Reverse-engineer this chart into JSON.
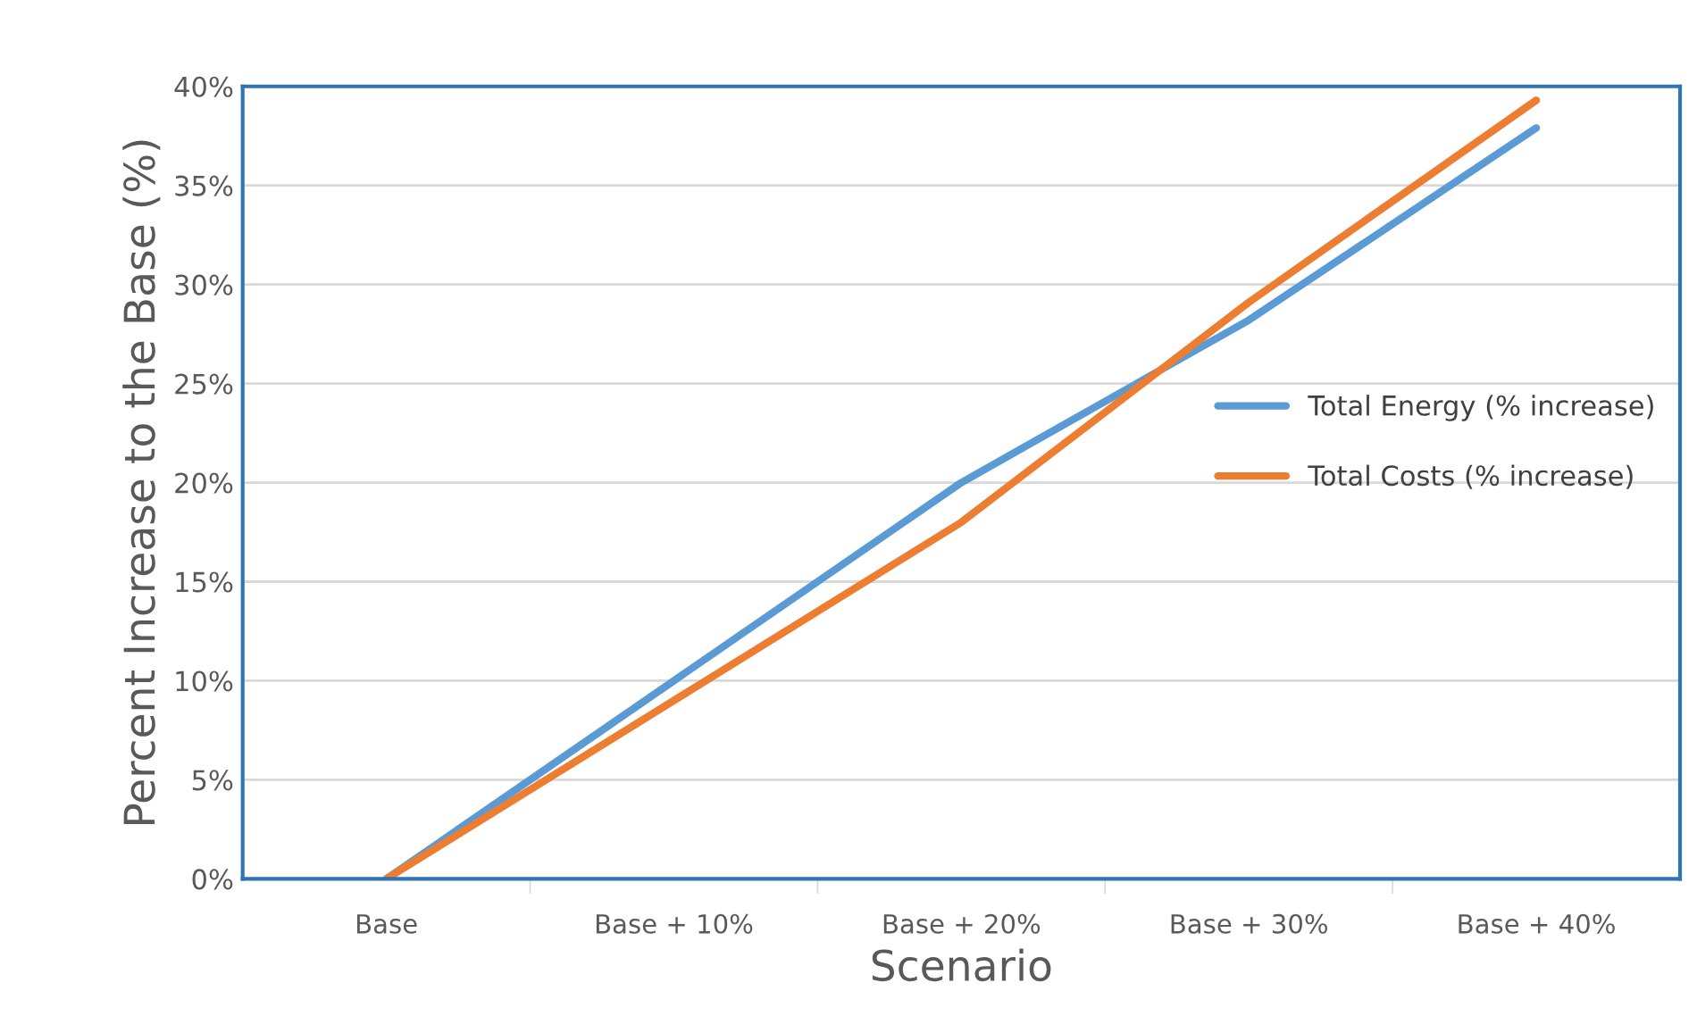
{
  "chart_data": {
    "type": "line",
    "xlabel": "Scenario",
    "ylabel": "Percent Increase to the Base (%)",
    "categories": [
      "Base",
      "Base + 10%",
      "Base + 20%",
      "Base + 30%",
      "Base + 40%"
    ],
    "series": [
      {
        "name": "Total Energy (% increase)",
        "color": "#5b9bd5",
        "values": [
          0,
          10,
          20,
          28.2,
          37.9
        ]
      },
      {
        "name": "Total Costs (% increase)",
        "color": "#ed7d31",
        "values": [
          0,
          9,
          18,
          29.1,
          39.3
        ]
      }
    ],
    "ylim": [
      0,
      40
    ],
    "yticks": [
      {
        "value": 0,
        "label": "0%"
      },
      {
        "value": 5,
        "label": "5%"
      },
      {
        "value": 10,
        "label": "10%"
      },
      {
        "value": 15,
        "label": "15%"
      },
      {
        "value": 20,
        "label": "20%"
      },
      {
        "value": 25,
        "label": "25%"
      },
      {
        "value": 30,
        "label": "30%"
      },
      {
        "value": 35,
        "label": "35%"
      },
      {
        "value": 40,
        "label": "40%"
      }
    ],
    "grid": "y",
    "legend": "right",
    "marker": "none",
    "line_style": "solid"
  }
}
